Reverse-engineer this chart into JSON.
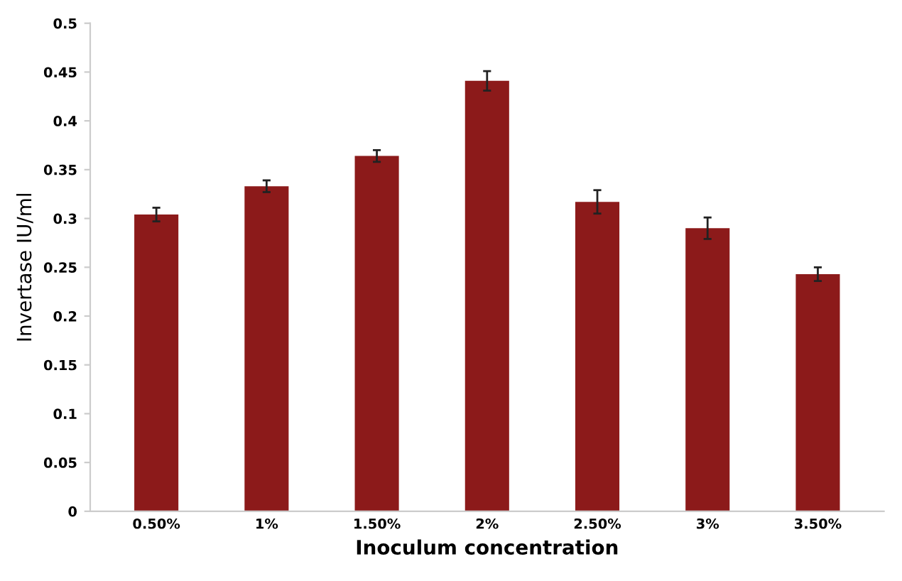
{
  "chart_data": {
    "type": "bar",
    "xlabel": "Inoculum concentration",
    "ylabel": "Invertase IU/ml",
    "categories": [
      "0.50%",
      "1%",
      "1.50%",
      "2%",
      "2.50%",
      "3%",
      "3.50%"
    ],
    "values": [
      0.304,
      0.333,
      0.364,
      0.441,
      0.317,
      0.29,
      0.243
    ],
    "errors": [
      0.007,
      0.006,
      0.006,
      0.01,
      0.012,
      0.011,
      0.007
    ],
    "color": "#8c1a1a",
    "ylim": [
      0,
      0.5
    ],
    "yticks": [
      0,
      0.05,
      0.1,
      0.15,
      0.2,
      0.25,
      0.3,
      0.35,
      0.4,
      0.45,
      0.5
    ],
    "grid": false
  }
}
